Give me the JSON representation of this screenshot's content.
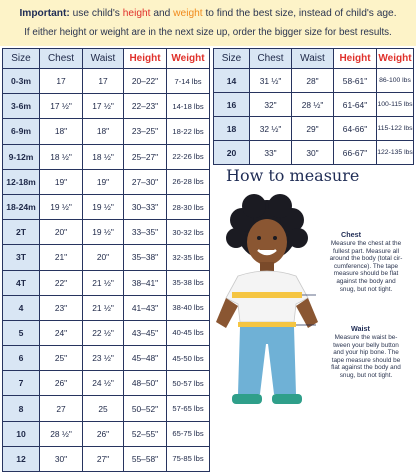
{
  "banner": {
    "line1_prefix": "Important:",
    "line1_a": " use child's ",
    "line1_height": "height",
    "line1_b": " and ",
    "line1_weight": "weight",
    "line1_c": " to find the best size, instead of child's age.",
    "line2": "If either height or weight are in the next size up, order the bigger size for best results."
  },
  "table_headers": {
    "size": "Size",
    "chest": "Chest",
    "waist": "Waist",
    "height": "Height",
    "weight": "Weight"
  },
  "left_rows": [
    {
      "size": "0-3m",
      "chest": "17",
      "waist": "17",
      "height": "20–22\"",
      "weight": "7-14 lbs"
    },
    {
      "size": "3-6m",
      "chest": "17 ½\"",
      "waist": "17 ½\"",
      "height": "22–23\"",
      "weight": "14-18 lbs"
    },
    {
      "size": "6-9m",
      "chest": "18\"",
      "waist": "18\"",
      "height": "23–25\"",
      "weight": "18-22 lbs"
    },
    {
      "size": "9-12m",
      "chest": "18 ½\"",
      "waist": "18 ½\"",
      "height": "25–27\"",
      "weight": "22-26 lbs"
    },
    {
      "size": "12-18m",
      "chest": "19\"",
      "waist": "19\"",
      "height": "27–30\"",
      "weight": "26-28 lbs"
    },
    {
      "size": "18-24m",
      "chest": "19 ½\"",
      "waist": "19 ½\"",
      "height": "30–33\"",
      "weight": "28-30 lbs"
    },
    {
      "size": "2T",
      "chest": "20\"",
      "waist": "19 ½\"",
      "height": "33–35\"",
      "weight": "30-32 lbs"
    },
    {
      "size": "3T",
      "chest": "21\"",
      "waist": "20\"",
      "height": "35–38\"",
      "weight": "32-35 lbs"
    },
    {
      "size": "4T",
      "chest": "22\"",
      "waist": "21 ½\"",
      "height": "38–41\"",
      "weight": "35-38 lbs"
    },
    {
      "size": "4",
      "chest": "23\"",
      "waist": "21 ½\"",
      "height": "41–43\"",
      "weight": "38-40 lbs"
    },
    {
      "size": "5",
      "chest": "24\"",
      "waist": "22 ½\"",
      "height": "43–45\"",
      "weight": "40-45 lbs"
    },
    {
      "size": "6",
      "chest": "25\"",
      "waist": "23 ½\"",
      "height": "45–48\"",
      "weight": "45-50 lbs"
    },
    {
      "size": "7",
      "chest": "26\"",
      "waist": "24 ½\"",
      "height": "48–50\"",
      "weight": "50-57 lbs"
    },
    {
      "size": "8",
      "chest": "27",
      "waist": "25",
      "height": "50–52\"",
      "weight": "57-65 lbs"
    },
    {
      "size": "10",
      "chest": "28 ½\"",
      "waist": "26\"",
      "height": "52–55\"",
      "weight": "65-75 lbs"
    },
    {
      "size": "12",
      "chest": "30\"",
      "waist": "27\"",
      "height": "55–58\"",
      "weight": "75-85 lbs"
    }
  ],
  "right_rows": [
    {
      "size": "14",
      "chest": "31 ½\"",
      "waist": "28\"",
      "height": "58-61\"",
      "weight": "86-100 lbs"
    },
    {
      "size": "16",
      "chest": "32\"",
      "waist": "28 ½\"",
      "height": "61-64\"",
      "weight": "100-115 lbs"
    },
    {
      "size": "18",
      "chest": "32 ½\"",
      "waist": "29\"",
      "height": "64-66\"",
      "weight": "115-122 lbs"
    },
    {
      "size": "20",
      "chest": "33\"",
      "waist": "30\"",
      "height": "66-67\"",
      "weight": "122-135 lbs"
    }
  ],
  "howto": {
    "title": "How to measure",
    "chest_title": "Chest",
    "chest_lines": [
      "Measure the chest at the",
      "fullest part. Measure all",
      "around the body (total cir-",
      "cumference). The tape",
      "measure should be flat",
      "against the body and",
      "snug, but not tight."
    ],
    "waist_title": "Waist",
    "waist_lines": [
      "Measure the waist be-",
      "tween your belly button",
      "and your hip bone. The",
      "tape measure should be",
      "flat against the body and",
      "snug, but not tight."
    ]
  },
  "colors": {
    "banner_bg": "#fdf3c8",
    "header_bg": "#d9e6f4",
    "border": "#27345f",
    "highlight_red": "#e0312b",
    "highlight_orange": "#f08a1c"
  }
}
